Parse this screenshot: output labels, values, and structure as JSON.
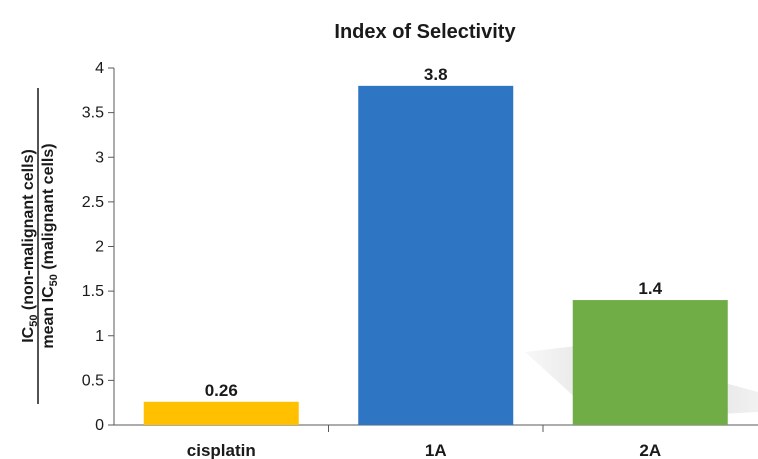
{
  "chart_data": {
    "type": "bar",
    "title": "Index of Selectivity",
    "categories": [
      "cisplatin",
      "1A",
      "2A"
    ],
    "values": [
      0.26,
      3.8,
      1.4
    ],
    "data_labels": [
      "0.26",
      "3.8",
      "1.4"
    ],
    "bar_colors": [
      "#FFC000",
      "#2E75C4",
      "#70AD47"
    ],
    "ylabel": {
      "numerator": {
        "pre": "IC",
        "sub": "50",
        "post": " (non-malignant cells)"
      },
      "denominator": {
        "pre": "mean IC",
        "sub": "50",
        "post": " (malignant cells)"
      }
    },
    "ylim": [
      0,
      4
    ],
    "yticks": [
      "0",
      "0.5",
      "1",
      "1.5",
      "2",
      "2.5",
      "3",
      "3.5",
      "4"
    ],
    "grid": false,
    "legend": "none"
  }
}
